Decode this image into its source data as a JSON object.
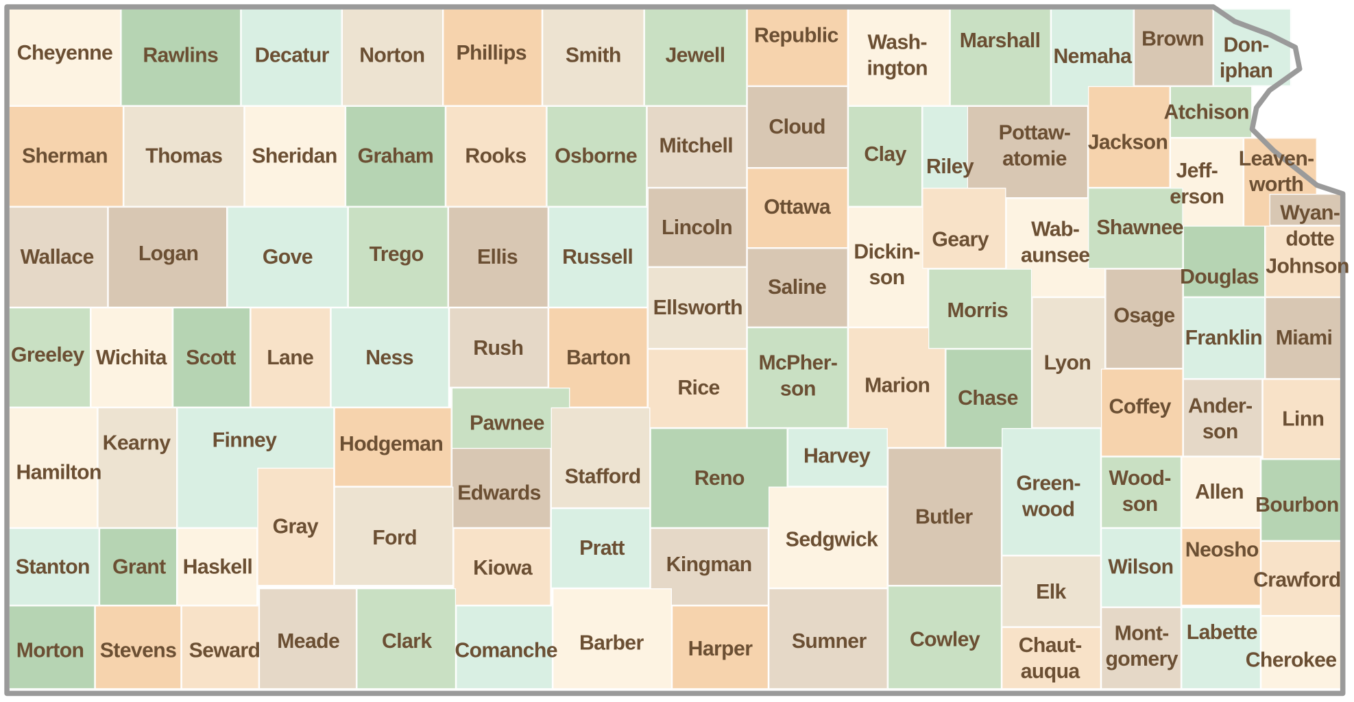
{
  "palette": {
    "cream": "#fdf3e2",
    "lightgreen": "#c9e0c3",
    "green": "#b6d4b3",
    "mint": "#d9efe3",
    "tan": "#d8c7b3",
    "lighttan": "#e5d8c7",
    "beige": "#ede3d1",
    "peach": "#f6d3ad",
    "lightpeach": "#f8e2c8",
    "label": "#6b4f33",
    "border": "#9a9a9a"
  },
  "counties": [
    {
      "name": "Cheyenne",
      "color": "cream"
    },
    {
      "name": "Rawlins",
      "color": "green"
    },
    {
      "name": "Decatur",
      "color": "mint"
    },
    {
      "name": "Norton",
      "color": "beige"
    },
    {
      "name": "Phillips",
      "color": "peach"
    },
    {
      "name": "Smith",
      "color": "beige"
    },
    {
      "name": "Jewell",
      "color": "lightgreen"
    },
    {
      "name": "Republic",
      "color": "peach"
    },
    {
      "name": "Wash-\nington",
      "color": "cream"
    },
    {
      "name": "Marshall",
      "color": "lightgreen"
    },
    {
      "name": "Nemaha",
      "color": "mint"
    },
    {
      "name": "Brown",
      "color": "tan"
    },
    {
      "name": "Don-\niphan",
      "color": "mint"
    },
    {
      "name": "Sherman",
      "color": "peach"
    },
    {
      "name": "Thomas",
      "color": "beige"
    },
    {
      "name": "Sheridan",
      "color": "cream"
    },
    {
      "name": "Graham",
      "color": "green"
    },
    {
      "name": "Rooks",
      "color": "lightpeach"
    },
    {
      "name": "Osborne",
      "color": "lightgreen"
    },
    {
      "name": "Mitchell",
      "color": "lighttan"
    },
    {
      "name": "Cloud",
      "color": "tan"
    },
    {
      "name": "Clay",
      "color": "lightgreen"
    },
    {
      "name": "Riley",
      "color": "mint"
    },
    {
      "name": "Pottaw-\natomie",
      "color": "tan"
    },
    {
      "name": "Jackson",
      "color": "peach"
    },
    {
      "name": "Atchison",
      "color": "lightgreen"
    },
    {
      "name": "Jeff-\nerson",
      "color": "cream"
    },
    {
      "name": "Leaven-\nworth",
      "color": "peach"
    },
    {
      "name": "Wyan-\ndotte",
      "color": "tan"
    },
    {
      "name": "Wallace",
      "color": "lighttan"
    },
    {
      "name": "Logan",
      "color": "tan"
    },
    {
      "name": "Gove",
      "color": "mint"
    },
    {
      "name": "Trego",
      "color": "lightgreen"
    },
    {
      "name": "Ellis",
      "color": "tan"
    },
    {
      "name": "Russell",
      "color": "mint"
    },
    {
      "name": "Lincoln",
      "color": "tan"
    },
    {
      "name": "Ottawa",
      "color": "peach"
    },
    {
      "name": "Saline",
      "color": "tan"
    },
    {
      "name": "Ellsworth",
      "color": "beige"
    },
    {
      "name": "Dickin-\nson",
      "color": "cream"
    },
    {
      "name": "Geary",
      "color": "lightpeach"
    },
    {
      "name": "Wab-\naunsee",
      "color": "cream"
    },
    {
      "name": "Shawnee",
      "color": "lightgreen"
    },
    {
      "name": "Douglas",
      "color": "green"
    },
    {
      "name": "Johnson",
      "color": "lightpeach"
    },
    {
      "name": "Greeley",
      "color": "lightgreen"
    },
    {
      "name": "Wichita",
      "color": "cream"
    },
    {
      "name": "Scott",
      "color": "green"
    },
    {
      "name": "Lane",
      "color": "lightpeach"
    },
    {
      "name": "Ness",
      "color": "mint"
    },
    {
      "name": "Rush",
      "color": "lighttan"
    },
    {
      "name": "Barton",
      "color": "peach"
    },
    {
      "name": "Rice",
      "color": "lightpeach"
    },
    {
      "name": "McPher-\nson",
      "color": "lightgreen"
    },
    {
      "name": "Marion",
      "color": "lightpeach"
    },
    {
      "name": "Morris",
      "color": "lightgreen"
    },
    {
      "name": "Chase",
      "color": "green"
    },
    {
      "name": "Lyon",
      "color": "beige"
    },
    {
      "name": "Osage",
      "color": "tan"
    },
    {
      "name": "Franklin",
      "color": "mint"
    },
    {
      "name": "Miami",
      "color": "tan"
    },
    {
      "name": "Hamilton",
      "color": "cream"
    },
    {
      "name": "Kearny",
      "color": "beige"
    },
    {
      "name": "Finney",
      "color": "mint"
    },
    {
      "name": "Hodgeman",
      "color": "peach"
    },
    {
      "name": "Pawnee",
      "color": "lightgreen"
    },
    {
      "name": "Edwards",
      "color": "tan"
    },
    {
      "name": "Stafford",
      "color": "beige"
    },
    {
      "name": "Reno",
      "color": "green"
    },
    {
      "name": "Harvey",
      "color": "mint"
    },
    {
      "name": "Butler",
      "color": "tan"
    },
    {
      "name": "Green-\nwood",
      "color": "mint"
    },
    {
      "name": "Coffey",
      "color": "peach"
    },
    {
      "name": "Ander-\nson",
      "color": "lighttan"
    },
    {
      "name": "Linn",
      "color": "lightpeach"
    },
    {
      "name": "Stanton",
      "color": "mint"
    },
    {
      "name": "Grant",
      "color": "green"
    },
    {
      "name": "Haskell",
      "color": "cream"
    },
    {
      "name": "Gray",
      "color": "lightpeach"
    },
    {
      "name": "Ford",
      "color": "beige"
    },
    {
      "name": "Kiowa",
      "color": "lightpeach"
    },
    {
      "name": "Pratt",
      "color": "mint"
    },
    {
      "name": "Kingman",
      "color": "lighttan"
    },
    {
      "name": "Sedgwick",
      "color": "cream"
    },
    {
      "name": "Wood-\nson",
      "color": "lightgreen"
    },
    {
      "name": "Allen",
      "color": "cream"
    },
    {
      "name": "Bourbon",
      "color": "green"
    },
    {
      "name": "Wilson",
      "color": "mint"
    },
    {
      "name": "Neosho",
      "color": "peach"
    },
    {
      "name": "Crawford",
      "color": "lightpeach"
    },
    {
      "name": "Elk",
      "color": "beige"
    },
    {
      "name": "Morton",
      "color": "green"
    },
    {
      "name": "Stevens",
      "color": "peach"
    },
    {
      "name": "Seward",
      "color": "lightpeach"
    },
    {
      "name": "Meade",
      "color": "lighttan"
    },
    {
      "name": "Clark",
      "color": "lightgreen"
    },
    {
      "name": "Comanche",
      "color": "mint"
    },
    {
      "name": "Barber",
      "color": "cream"
    },
    {
      "name": "Harper",
      "color": "peach"
    },
    {
      "name": "Sumner",
      "color": "lighttan"
    },
    {
      "name": "Cowley",
      "color": "lightgreen"
    },
    {
      "name": "Chaut-\nauqua",
      "color": "lightpeach"
    },
    {
      "name": "Mont-\ngomery",
      "color": "lighttan"
    },
    {
      "name": "Labette",
      "color": "mint"
    },
    {
      "name": "Cherokee",
      "color": "cream"
    }
  ]
}
